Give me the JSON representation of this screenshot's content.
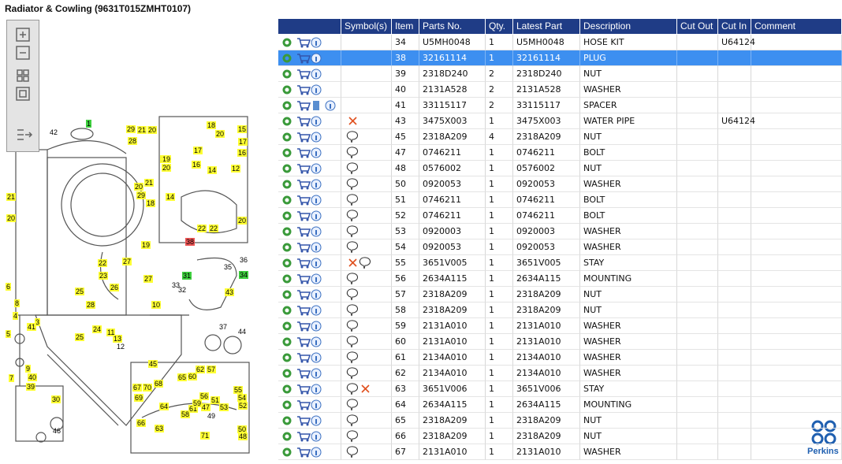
{
  "header": {
    "title": "Radiator & Cowling (9631T015ZMHT0107)"
  },
  "table": {
    "columns": [
      "Symbol(s)",
      "Item",
      "Parts No.",
      "Qty.",
      "Latest Part No.",
      "Description",
      "Cut Out",
      "Cut In",
      "Comment"
    ],
    "selected_row": 1,
    "rows": [
      {
        "item": "34",
        "part": "U5MH0048",
        "qty": "1",
        "latest": "U5MH0048",
        "desc": "HOSE KIT",
        "cut_out": "",
        "cut_in": "U64124",
        "symbols": []
      },
      {
        "item": "38",
        "part": "32161114",
        "qty": "1",
        "latest": "32161114",
        "desc": "PLUG",
        "cut_out": "",
        "cut_in": "",
        "symbols": []
      },
      {
        "item": "39",
        "part": "2318D240",
        "qty": "2",
        "latest": "2318D240",
        "desc": "NUT",
        "cut_out": "",
        "cut_in": "",
        "symbols": []
      },
      {
        "item": "40",
        "part": "2131A528",
        "qty": "2",
        "latest": "2131A528",
        "desc": "WASHER",
        "cut_out": "",
        "cut_in": "",
        "symbols": []
      },
      {
        "item": "41",
        "part": "33115117",
        "qty": "2",
        "latest": "33115117",
        "desc": "SPACER",
        "cut_out": "",
        "cut_in": "",
        "symbols": []
      },
      {
        "item": "43",
        "part": "3475X003",
        "qty": "1",
        "latest": "3475X003",
        "desc": "WATER PIPE",
        "cut_out": "",
        "cut_in": "U64124",
        "symbols": [
          "x"
        ]
      },
      {
        "item": "45",
        "part": "2318A209",
        "qty": "4",
        "latest": "2318A209",
        "desc": "NUT",
        "cut_out": "",
        "cut_in": "",
        "symbols": [
          "note"
        ]
      },
      {
        "item": "47",
        "part": "0746211",
        "qty": "1",
        "latest": "0746211",
        "desc": "BOLT",
        "cut_out": "",
        "cut_in": "",
        "symbols": [
          "note"
        ]
      },
      {
        "item": "48",
        "part": "0576002",
        "qty": "1",
        "latest": "0576002",
        "desc": "NUT",
        "cut_out": "",
        "cut_in": "",
        "symbols": [
          "note"
        ]
      },
      {
        "item": "50",
        "part": "0920053",
        "qty": "1",
        "latest": "0920053",
        "desc": "WASHER",
        "cut_out": "",
        "cut_in": "",
        "symbols": [
          "note"
        ]
      },
      {
        "item": "51",
        "part": "0746211",
        "qty": "1",
        "latest": "0746211",
        "desc": "BOLT",
        "cut_out": "",
        "cut_in": "",
        "symbols": [
          "note"
        ]
      },
      {
        "item": "52",
        "part": "0746211",
        "qty": "1",
        "latest": "0746211",
        "desc": "BOLT",
        "cut_out": "",
        "cut_in": "",
        "symbols": [
          "note"
        ]
      },
      {
        "item": "53",
        "part": "0920003",
        "qty": "1",
        "latest": "0920003",
        "desc": "WASHER",
        "cut_out": "",
        "cut_in": "",
        "symbols": [
          "note"
        ]
      },
      {
        "item": "54",
        "part": "0920053",
        "qty": "1",
        "latest": "0920053",
        "desc": "WASHER",
        "cut_out": "",
        "cut_in": "",
        "symbols": [
          "note"
        ]
      },
      {
        "item": "55",
        "part": "3651V005",
        "qty": "1",
        "latest": "3651V005",
        "desc": "STAY",
        "cut_out": "",
        "cut_in": "",
        "symbols": [
          "x",
          "note"
        ]
      },
      {
        "item": "56",
        "part": "2634A115",
        "qty": "1",
        "latest": "2634A115",
        "desc": "MOUNTING",
        "cut_out": "",
        "cut_in": "",
        "symbols": [
          "note"
        ]
      },
      {
        "item": "57",
        "part": "2318A209",
        "qty": "1",
        "latest": "2318A209",
        "desc": "NUT",
        "cut_out": "",
        "cut_in": "",
        "symbols": [
          "note"
        ]
      },
      {
        "item": "58",
        "part": "2318A209",
        "qty": "1",
        "latest": "2318A209",
        "desc": "NUT",
        "cut_out": "",
        "cut_in": "",
        "symbols": [
          "note"
        ]
      },
      {
        "item": "59",
        "part": "2131A010",
        "qty": "1",
        "latest": "2131A010",
        "desc": "WASHER",
        "cut_out": "",
        "cut_in": "",
        "symbols": [
          "note"
        ]
      },
      {
        "item": "60",
        "part": "2131A010",
        "qty": "1",
        "latest": "2131A010",
        "desc": "WASHER",
        "cut_out": "",
        "cut_in": "",
        "symbols": [
          "note"
        ]
      },
      {
        "item": "61",
        "part": "2134A010",
        "qty": "1",
        "latest": "2134A010",
        "desc": "WASHER",
        "cut_out": "",
        "cut_in": "",
        "symbols": [
          "note"
        ]
      },
      {
        "item": "62",
        "part": "2134A010",
        "qty": "1",
        "latest": "2134A010",
        "desc": "WASHER",
        "cut_out": "",
        "cut_in": "",
        "symbols": [
          "note"
        ]
      },
      {
        "item": "63",
        "part": "3651V006",
        "qty": "1",
        "latest": "3651V006",
        "desc": "STAY",
        "cut_out": "",
        "cut_in": "",
        "symbols": [
          "note",
          "x"
        ]
      },
      {
        "item": "64",
        "part": "2634A115",
        "qty": "1",
        "latest": "2634A115",
        "desc": "MOUNTING",
        "cut_out": "",
        "cut_in": "",
        "symbols": [
          "note"
        ]
      },
      {
        "item": "65",
        "part": "2318A209",
        "qty": "1",
        "latest": "2318A209",
        "desc": "NUT",
        "cut_out": "",
        "cut_in": "",
        "symbols": [
          "note"
        ]
      },
      {
        "item": "66",
        "part": "2318A209",
        "qty": "1",
        "latest": "2318A209",
        "desc": "NUT",
        "cut_out": "",
        "cut_in": "",
        "symbols": [
          "note"
        ]
      },
      {
        "item": "67",
        "part": "2131A010",
        "qty": "1",
        "latest": "2131A010",
        "desc": "WASHER",
        "cut_out": "",
        "cut_in": "",
        "symbols": [
          "note"
        ]
      }
    ]
  },
  "diagram": {
    "callouts": [
      {
        "label": "1",
        "color": "#3ecf3e"
      },
      {
        "label": "42",
        "color": null
      },
      {
        "label": "29",
        "color": "#ffff33"
      },
      {
        "label": "21",
        "color": "#ffff33"
      },
      {
        "label": "20",
        "color": "#ffff33"
      },
      {
        "label": "28",
        "color": "#ffff33"
      },
      {
        "label": "18",
        "color": "#ffff33"
      },
      {
        "label": "15",
        "color": "#ffff33"
      },
      {
        "label": "20",
        "color": "#ffff33"
      },
      {
        "label": "19",
        "color": "#ffff33"
      },
      {
        "label": "17",
        "color": "#ffff33"
      },
      {
        "label": "17",
        "color": "#ffff33"
      },
      {
        "label": "16",
        "color": "#ffff33"
      },
      {
        "label": "16",
        "color": "#ffff33"
      },
      {
        "label": "19",
        "color": "#ffff33"
      },
      {
        "label": "20",
        "color": "#ffff33"
      },
      {
        "label": "14",
        "color": "#ffff33"
      },
      {
        "label": "12",
        "color": "#ffff33"
      },
      {
        "label": "21",
        "color": "#ffff33"
      },
      {
        "label": "20",
        "color": "#ffff33"
      },
      {
        "label": "29",
        "color": "#ffff33"
      },
      {
        "label": "20",
        "color": "#ffff33"
      },
      {
        "label": "21",
        "color": "#ffff33"
      },
      {
        "label": "18",
        "color": "#ffff33"
      },
      {
        "label": "14",
        "color": "#ffff33"
      },
      {
        "label": "22",
        "color": "#ffff33"
      },
      {
        "label": "22",
        "color": "#ffff33"
      },
      {
        "label": "20",
        "color": "#ffff33"
      },
      {
        "label": "19",
        "color": "#ffff33"
      },
      {
        "label": "38",
        "color": "#ee5555"
      },
      {
        "label": "27",
        "color": "#ffff33"
      },
      {
        "label": "22",
        "color": "#ffff33"
      },
      {
        "label": "27",
        "color": "#ffff33"
      },
      {
        "label": "31",
        "color": "#3ecf3e"
      },
      {
        "label": "34",
        "color": "#3ecf3e"
      },
      {
        "label": "23",
        "color": "#ffff33"
      },
      {
        "label": "25",
        "color": "#ffff33"
      },
      {
        "label": "26",
        "color": "#ffff33"
      },
      {
        "label": "28",
        "color": "#ffff33"
      },
      {
        "label": "33",
        "color": null
      },
      {
        "label": "43",
        "color": "#ffff33"
      },
      {
        "label": "10",
        "color": "#ffff33"
      },
      {
        "label": "6",
        "color": "#ffff33"
      },
      {
        "label": "8",
        "color": "#ffff33"
      },
      {
        "label": "3",
        "color": "#ffff33"
      },
      {
        "label": "41",
        "color": "#ffff33"
      },
      {
        "label": "4",
        "color": "#ffff33"
      },
      {
        "label": "24",
        "color": "#ffff33"
      },
      {
        "label": "11",
        "color": "#ffff33"
      },
      {
        "label": "13",
        "color": "#ffff33"
      },
      {
        "label": "25",
        "color": "#ffff33"
      },
      {
        "label": "5",
        "color": "#ffff33"
      },
      {
        "label": "9",
        "color": "#ffff33"
      },
      {
        "label": "40",
        "color": "#ffff33"
      },
      {
        "label": "7",
        "color": "#ffff33"
      },
      {
        "label": "45",
        "color": "#ffff33"
      },
      {
        "label": "39",
        "color": "#ffff33"
      },
      {
        "label": "30",
        "color": "#ffff33"
      },
      {
        "label": "67",
        "color": "#ffff33"
      },
      {
        "label": "70",
        "color": "#ffff33"
      },
      {
        "label": "68",
        "color": "#ffff33"
      },
      {
        "label": "65",
        "color": "#ffff33"
      },
      {
        "label": "60",
        "color": "#ffff33"
      },
      {
        "label": "62",
        "color": "#ffff33"
      },
      {
        "label": "57",
        "color": "#ffff33"
      },
      {
        "label": "55",
        "color": "#ffff33"
      },
      {
        "label": "54",
        "color": "#ffff33"
      },
      {
        "label": "52",
        "color": "#ffff33"
      },
      {
        "label": "69",
        "color": "#ffff33"
      },
      {
        "label": "64",
        "color": "#ffff33"
      },
      {
        "label": "58",
        "color": "#ffff33"
      },
      {
        "label": "61",
        "color": "#ffff33"
      },
      {
        "label": "59",
        "color": "#ffff33"
      },
      {
        "label": "56",
        "color": "#ffff33"
      },
      {
        "label": "51",
        "color": "#ffff33"
      },
      {
        "label": "63",
        "color": "#ffff33"
      },
      {
        "label": "66",
        "color": "#ffff33"
      },
      {
        "label": "71",
        "color": "#ffff33"
      },
      {
        "label": "50",
        "color": "#ffff33"
      },
      {
        "label": "48",
        "color": "#ffff33"
      },
      {
        "label": "47",
        "color": "#ffff33"
      },
      {
        "label": "53",
        "color": "#ffff33"
      },
      {
        "label": "35",
        "color": null
      },
      {
        "label": "36",
        "color": null
      },
      {
        "label": "37",
        "color": null
      },
      {
        "label": "44",
        "color": null
      },
      {
        "label": "32",
        "color": null
      },
      {
        "label": "12",
        "color": null
      },
      {
        "label": "46",
        "color": null
      },
      {
        "label": "49",
        "color": null
      }
    ]
  },
  "logo": {
    "text": "Perkins"
  }
}
